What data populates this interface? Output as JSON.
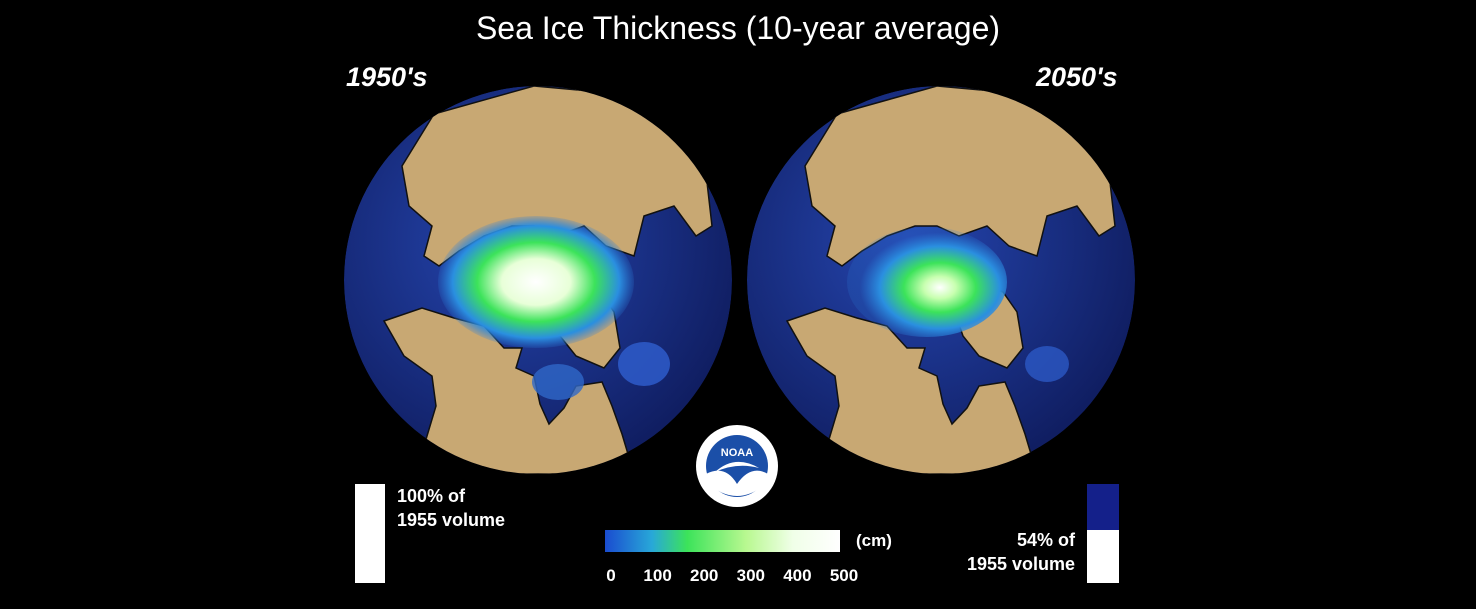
{
  "title": "Sea Ice Thickness (10-year average)",
  "panels": [
    {
      "label": "1950's",
      "volume_line1": "100% of",
      "volume_line2": "1955 volume",
      "volume_fraction": 1.0
    },
    {
      "label": "2050's",
      "volume_line1": "54% of",
      "volume_line2": "1955 volume",
      "volume_fraction": 0.54
    }
  ],
  "colorbar": {
    "unit": "(cm)",
    "ticks": [
      "0",
      "100",
      "200",
      "300",
      "400",
      "500"
    ],
    "range": [
      0,
      500
    ]
  },
  "logo": {
    "text": "NOAA",
    "icon": "noaa-logo"
  },
  "colors": {
    "ocean": "#1f3a9a",
    "land": "#c8a873",
    "ice_low": "#2a7cd8",
    "ice_mid": "#3ce35a",
    "ice_high": "#ffffff",
    "lost_volume": "#14208a"
  }
}
